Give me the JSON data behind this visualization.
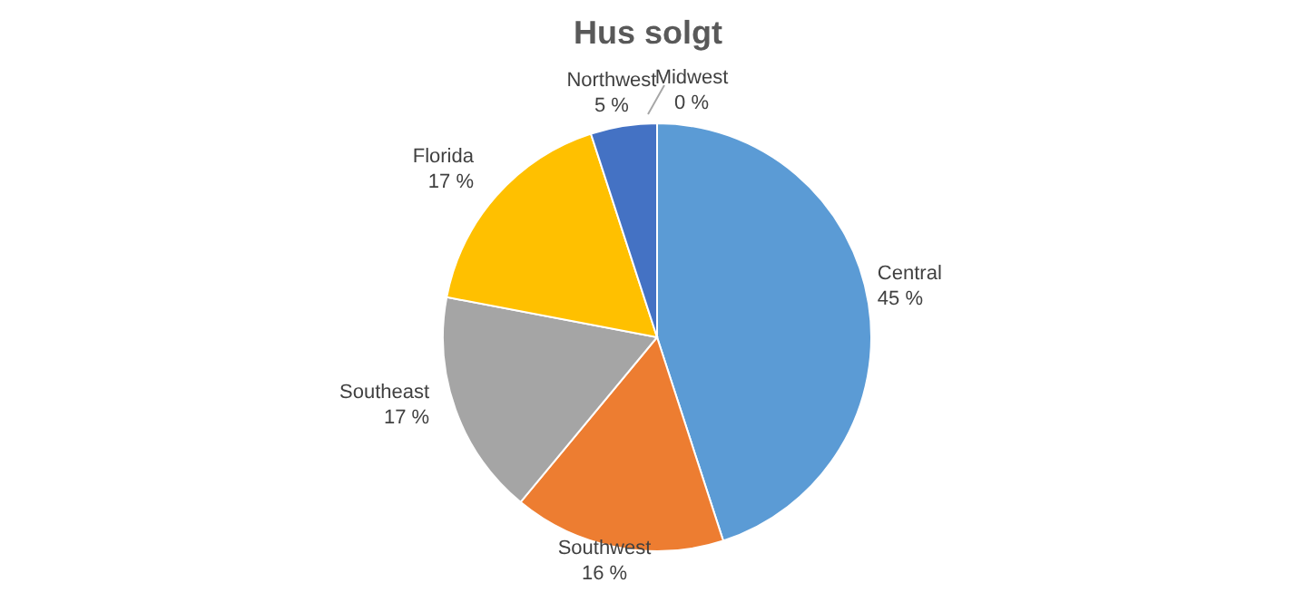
{
  "chart_data": {
    "type": "pie",
    "title": "Hus solgt",
    "categories": [
      "Central",
      "Southwest",
      "Southeast",
      "Florida",
      "Northwest",
      "Midwest"
    ],
    "values": [
      45,
      16,
      17,
      17,
      5,
      0
    ],
    "value_labels": [
      "45 %",
      "16 %",
      "17 %",
      "17 %",
      "5 %",
      "0 %"
    ],
    "colors": [
      "#5b9bd5",
      "#ed7d31",
      "#a5a5a5",
      "#ffc000",
      "#4472c4",
      "#70ad47"
    ],
    "legend": false
  }
}
